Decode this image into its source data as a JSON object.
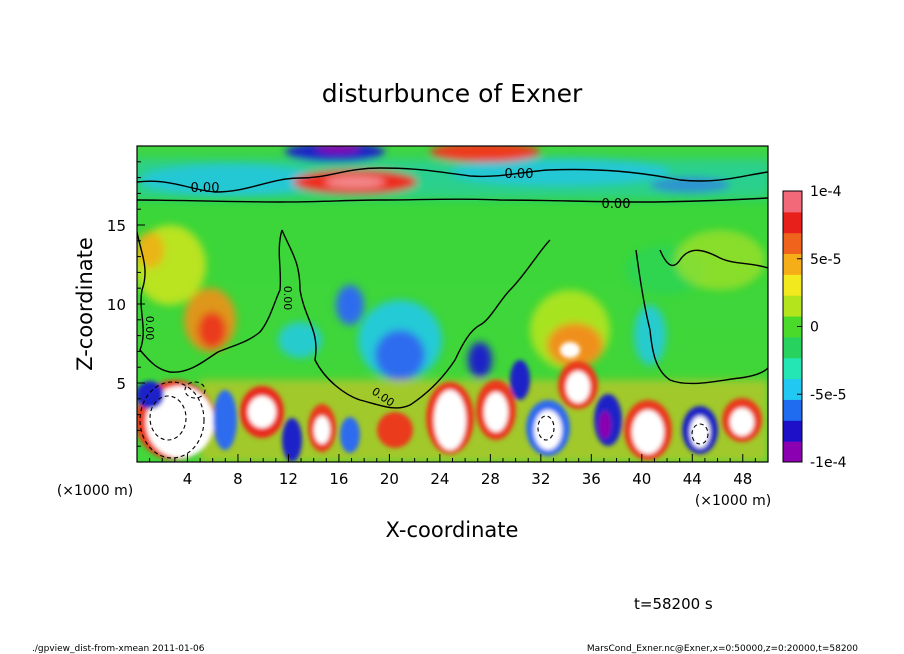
{
  "chart_data": {
    "type": "heatmap",
    "title": "disturbunce of Exner",
    "xlabel": "X-coordinate",
    "ylabel": "Z-coordinate",
    "x_unit": "(×1000 m)",
    "y_unit": "(×1000 m)",
    "xlim": [
      0,
      50
    ],
    "ylim": [
      0,
      20
    ],
    "x_ticks": [
      "4",
      "8",
      "12",
      "16",
      "20",
      "24",
      "28",
      "32",
      "36",
      "40",
      "44",
      "48"
    ],
    "y_ticks": [
      "5",
      "10",
      "15"
    ],
    "colorbar": {
      "range": [
        -0.0001,
        0.0001
      ],
      "tick_labels": [
        "1e-4",
        "5e-5",
        "0",
        "-5e-5",
        "-1e-4"
      ],
      "colors": [
        "#8b00b0",
        "#1e10c8",
        "#1f6cf0",
        "#21c8f2",
        "#24e6b4",
        "#27d35e",
        "#4ada2a",
        "#b4e41c",
        "#f2e91e",
        "#f6ae18",
        "#f0631c",
        "#e8201c",
        "#f26a7a"
      ]
    },
    "contour_labels": [
      "0.00",
      "0.00",
      "0.00",
      "0.00",
      "0.00",
      "0.00"
    ],
    "features": [
      {
        "x": 16.5,
        "z": 17.5,
        "sign": "positive",
        "amplitude": "1e-4"
      },
      {
        "x": 26.0,
        "z": 19.3,
        "sign": "positive",
        "amplitude": "1e-4"
      },
      {
        "x": 15.5,
        "z": 19.6,
        "sign": "negative",
        "amplitude": "-1e-4"
      },
      {
        "x": 21.0,
        "z": 6.5,
        "sign": "negative",
        "amplitude": "-6e-5"
      },
      {
        "x": 27.0,
        "z": 6.0,
        "sign": "negative",
        "amplitude": "-1e-4"
      },
      {
        "x": 2.5,
        "z": 2.5,
        "sign": "positive",
        "amplitude": ">1e-4"
      }
    ]
  },
  "time_label": "t=58200 s",
  "footer": {
    "left": "./gpview_dist-from-xmean  2011-01-06",
    "right": "MarsCond_Exner.nc@Exner,x=0:50000,z=0:20000,t=58200"
  }
}
